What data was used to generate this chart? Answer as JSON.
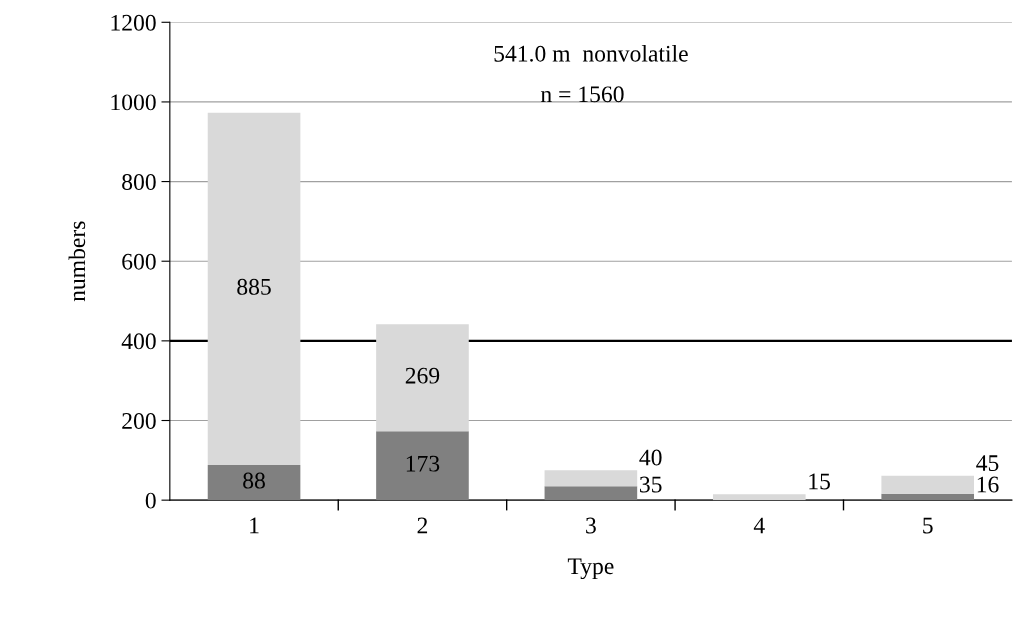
{
  "chart_data": {
    "type": "bar",
    "stacked": true,
    "xlabel": "Type",
    "ylabel": "numbers",
    "categories": [
      "1",
      "2",
      "3",
      "4",
      "5"
    ],
    "series": [
      {
        "color": "#808080",
        "values": [
          88,
          173,
          35,
          0,
          16
        ],
        "value_labels": [
          "88",
          "173",
          "35",
          null,
          "16"
        ]
      },
      {
        "color": "#d9d9d9",
        "values": [
          885,
          269,
          40,
          15,
          45
        ],
        "value_labels": [
          "885",
          "269",
          "40",
          "15",
          "45"
        ]
      }
    ],
    "ylim": [
      0,
      1200
    ],
    "yticks": [
      0,
      200,
      400,
      600,
      800,
      1000,
      1200
    ],
    "grid": "y",
    "ref_lines": [
      {
        "axis": "y",
        "value": 400,
        "color": "#000000"
      }
    ],
    "annotations": [
      "541.0 m  nonvolatile",
      "n = 1560"
    ]
  }
}
